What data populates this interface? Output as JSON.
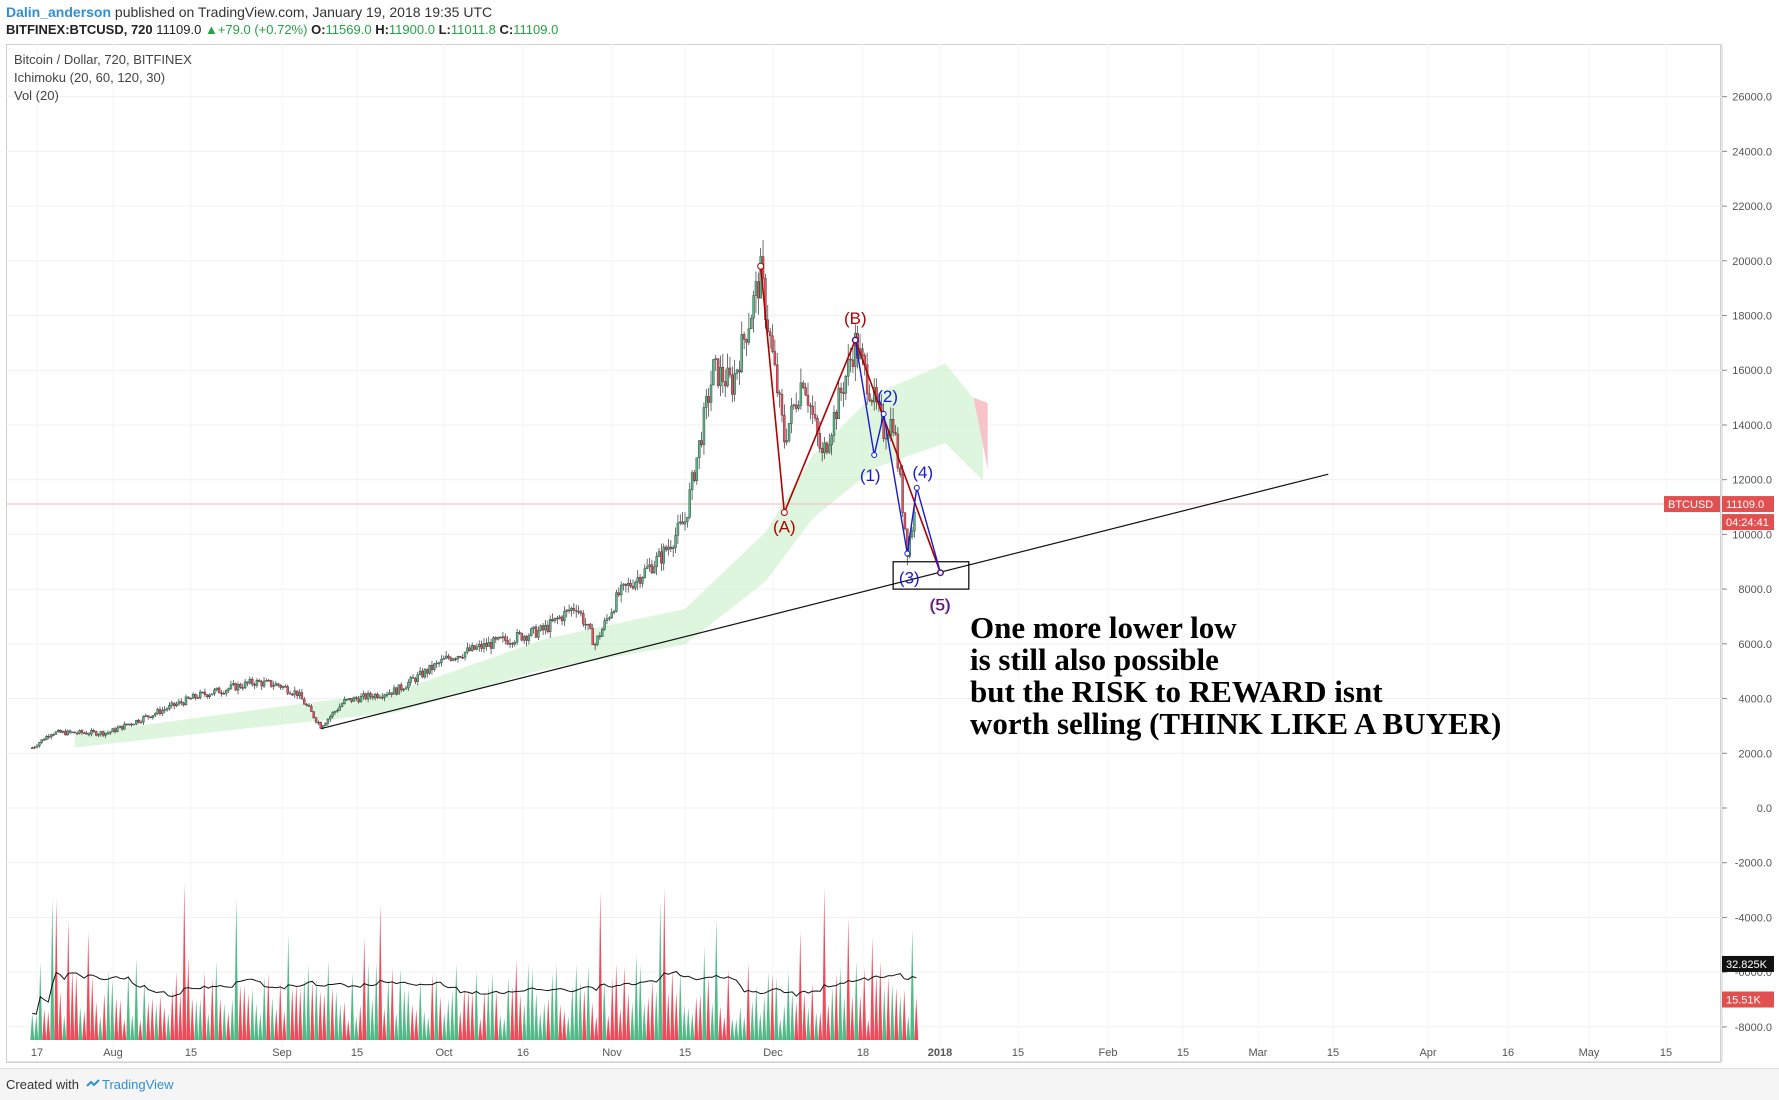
{
  "header": {
    "user": "Dalin_anderson",
    "published": "published on TradingView.com, January 19, 2018 19:35 UTC",
    "symbol": "BITFINEX:BTCUSD, 720",
    "last": "11109.0",
    "arrow": "▲",
    "change": "+79.0 (+0.72%)",
    "o_label": "O:",
    "o": "11569.0",
    "h_label": "H:",
    "h": "11900.0",
    "l_label": "L:",
    "l": "11011.8",
    "c_label": "C:",
    "c": "11109.0"
  },
  "legend": {
    "title": "Bitcoin / Dollar, 720, BITFINEX",
    "ichimoku": "Ichimoku (20, 60, 120, 30)",
    "vol": "Vol (20)"
  },
  "price_tags": {
    "symbol": "BTCUSD",
    "price": "11109.0",
    "countdown": "04:24:41",
    "vol_ma": "32.825K",
    "vol_last": "15.51K"
  },
  "annotation": [
    "One more lower low",
    "is still also possible",
    "but the RISK to REWARD isnt",
    "worth selling (THINK LIKE A BUYER)"
  ],
  "footer": {
    "created": "Created with",
    "brand": "TradingView"
  },
  "colors": {
    "up": "#53b987",
    "down": "#eb4d5c",
    "cloud": "#c8f0c8",
    "wave_abc": "#b00000",
    "wave_123": "#1a1ad0"
  },
  "chart_data": [
    {
      "type": "candlestick",
      "title": "Bitcoin / Dollar, 720, BITFINEX",
      "ylim": [
        -10000,
        28000
      ],
      "y_ticks": [
        26000,
        24000,
        22000,
        20000,
        18000,
        16000,
        14000,
        12000,
        10000,
        8000,
        6000,
        4000,
        2000,
        0,
        -2000,
        -4000,
        -6000,
        -8000
      ],
      "y_tick_labels": [
        "26000.0",
        "24000.0",
        "22000.0",
        "20000.0",
        "18000.0",
        "16000.0",
        "14000.0",
        "12000.0",
        "10000.0",
        "8000.0",
        "6000.0",
        "4000.0",
        "2000.0",
        "0.0",
        "-2000.0",
        "-4000.0",
        "-6000.0",
        "-8000.0"
      ],
      "x_ticks": [
        "17",
        "Aug",
        "15",
        "Sep",
        "15",
        "Oct",
        "16",
        "Nov",
        "15",
        "Dec",
        "18",
        "2018",
        "15",
        "Feb",
        "15",
        "Mar",
        "15",
        "Apr",
        "16",
        "May",
        "15"
      ],
      "price_path": [
        [
          "2017-07-16",
          2200
        ],
        [
          "2017-07-20",
          2750
        ],
        [
          "2017-08-01",
          2750
        ],
        [
          "2017-08-10",
          3400
        ],
        [
          "2017-08-20",
          4100
        ],
        [
          "2017-09-01",
          4600
        ],
        [
          "2017-09-06",
          4500
        ],
        [
          "2017-09-10",
          4200
        ],
        [
          "2017-09-15",
          3000
        ],
        [
          "2017-09-20",
          3900
        ],
        [
          "2017-10-01",
          4300
        ],
        [
          "2017-10-12",
          5500
        ],
        [
          "2017-10-21",
          6000
        ],
        [
          "2017-11-01",
          6500
        ],
        [
          "2017-11-08",
          7400
        ],
        [
          "2017-11-12",
          6000
        ],
        [
          "2017-11-17",
          7800
        ],
        [
          "2017-11-26",
          9200
        ],
        [
          "2017-12-01",
          10500
        ],
        [
          "2017-12-07",
          16000
        ],
        [
          "2017-12-11",
          15500
        ],
        [
          "2017-12-17",
          19500
        ],
        [
          "2017-12-22",
          13500
        ],
        [
          "2017-12-26",
          15800
        ],
        [
          "2017-12-30",
          12800
        ],
        [
          "2018-01-06",
          17000
        ],
        [
          "2018-01-12",
          13800
        ],
        [
          "2018-01-14",
          14200
        ],
        [
          "2018-01-17",
          9500
        ],
        [
          "2018-01-19",
          11109
        ]
      ],
      "trendline": {
        "from": [
          "2017-09-15",
          2900
        ],
        "to": [
          "2018-04-16",
          12200
        ]
      },
      "cloud_path": [
        [
          "2017-07-25",
          2400
        ],
        [
          "2017-09-01",
          3200
        ],
        [
          "2017-10-01",
          3800
        ],
        [
          "2017-11-01",
          5500
        ],
        [
          "2017-12-01",
          6500
        ],
        [
          "2017-12-18",
          9000
        ],
        [
          "2017-12-28",
          11500
        ],
        [
          "2018-01-10",
          13500
        ],
        [
          "2018-01-25",
          14500
        ],
        [
          "2018-02-02",
          13000
        ]
      ],
      "waves": {
        "abc": [
          {
            "label": "(A)",
            "date": "2017-12-22",
            "price": 10800
          },
          {
            "label": "(B)",
            "date": "2018-01-06",
            "price": 17100
          },
          {
            "label": "(5)",
            "date": "2018-01-24",
            "price": 8600
          }
        ],
        "impulse": [
          {
            "label": "(1)",
            "date": "2018-01-10",
            "price": 12900
          },
          {
            "label": "(2)",
            "date": "2018-01-12",
            "price": 14400
          },
          {
            "label": "(3)",
            "date": "2018-01-17",
            "price": 9300
          },
          {
            "label": "(4)",
            "date": "2018-01-19",
            "price": 11700
          },
          {
            "label": "(5)",
            "date": "2018-01-24",
            "price": 8600
          }
        ]
      },
      "target_box": {
        "from": [
          "2018-01-14",
          8000
        ],
        "to": [
          "2018-01-30",
          9000
        ]
      },
      "last_price": 11109
    }
  ]
}
